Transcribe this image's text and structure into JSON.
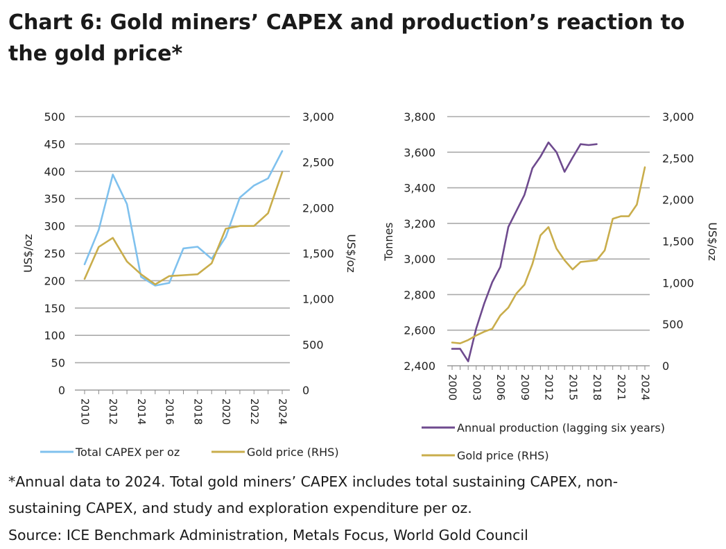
{
  "title": "Chart 6: Gold miners’ CAPEX and production’s reaction to the gold price*",
  "footnote_line1": "*Annual data to 2024. Total gold miners’ CAPEX includes total sustaining CAPEX, non-",
  "footnote_line2": "sustaining CAPEX, and study and exploration expenditure per oz.",
  "source": "Source: ICE Benchmark Administration, Metals Focus, World Gold Council",
  "colors": {
    "capex": "#7fc1ee",
    "gold": "#c9ad4b",
    "production": "#6e4a8e",
    "grid": "#aaaaaa"
  },
  "chart_data": [
    {
      "type": "line",
      "title": "",
      "ylabel": "US$/oz",
      "y2label": "US$/oz",
      "ylim": [
        0,
        500
      ],
      "y2lim": [
        0,
        3000
      ],
      "yticks": [
        "500",
        "450",
        "400",
        "350",
        "300",
        "250",
        "200",
        "150",
        "100",
        "50",
        "0"
      ],
      "y2ticks": [
        "3,000",
        "2,500",
        "2,000",
        "1,500",
        "1,000",
        "500",
        "0"
      ],
      "xticks": [
        "2010",
        "2012",
        "2014",
        "2016",
        "2018",
        "2020",
        "2022",
        "2024"
      ],
      "x": [
        2010,
        2011,
        2012,
        2013,
        2014,
        2015,
        2016,
        2017,
        2018,
        2019,
        2020,
        2021,
        2022,
        2023,
        2024
      ],
      "series": [
        {
          "name": "Total CAPEX per oz",
          "axis": "left",
          "values": [
            230,
            293,
            394,
            340,
            207,
            191,
            196,
            259,
            262,
            240,
            280,
            352,
            374,
            387,
            437
          ]
        },
        {
          "name": "Gold price (RHS)",
          "axis": "right",
          "values": [
            1220,
            1570,
            1670,
            1410,
            1270,
            1160,
            1250,
            1260,
            1270,
            1390,
            1770,
            1800,
            1800,
            1940,
            2390
          ]
        }
      ]
    },
    {
      "type": "line",
      "title": "",
      "ylabel": "Tonnes",
      "y2label": "US$/oz",
      "ylim": [
        2400,
        3800
      ],
      "y2lim": [
        0,
        3000
      ],
      "yticks": [
        "3,800",
        "3,600",
        "3,400",
        "3,200",
        "3,000",
        "2,800",
        "2,600",
        "2,400"
      ],
      "y2ticks": [
        "3,000",
        "2,500",
        "2,000",
        "1,500",
        "1,000",
        "500",
        "0"
      ],
      "xticks": [
        "2000",
        "2003",
        "2006",
        "2009",
        "2012",
        "2015",
        "2018",
        "2021",
        "2024"
      ],
      "x": [
        2000,
        2001,
        2002,
        2003,
        2004,
        2005,
        2006,
        2007,
        2008,
        2009,
        2010,
        2011,
        2012,
        2013,
        2014,
        2015,
        2016,
        2017,
        2018,
        2019,
        2020,
        2021,
        2022,
        2023,
        2024
      ],
      "series": [
        {
          "name": "Annual production (lagging six years)",
          "axis": "left",
          "x": [
            2000,
            2001,
            2002,
            2003,
            2004,
            2005,
            2006,
            2007,
            2008,
            2009,
            2010,
            2011,
            2012,
            2013,
            2014,
            2015,
            2016,
            2017,
            2018
          ],
          "values": [
            2495,
            2495,
            2425,
            2610,
            2750,
            2870,
            2955,
            3180,
            3270,
            3360,
            3510,
            3575,
            3655,
            3600,
            3490,
            3570,
            3645,
            3640,
            3645
          ]
        },
        {
          "name": "Gold price (RHS)",
          "axis": "right",
          "x": [
            2000,
            2001,
            2002,
            2003,
            2004,
            2005,
            2006,
            2007,
            2008,
            2009,
            2010,
            2011,
            2012,
            2013,
            2014,
            2015,
            2016,
            2017,
            2018,
            2019,
            2020,
            2021,
            2022,
            2023,
            2024
          ],
          "values": [
            280,
            270,
            310,
            365,
            410,
            445,
            605,
            700,
            870,
            975,
            1225,
            1570,
            1670,
            1410,
            1270,
            1160,
            1250,
            1260,
            1270,
            1390,
            1770,
            1800,
            1800,
            1940,
            2390
          ]
        }
      ]
    }
  ]
}
